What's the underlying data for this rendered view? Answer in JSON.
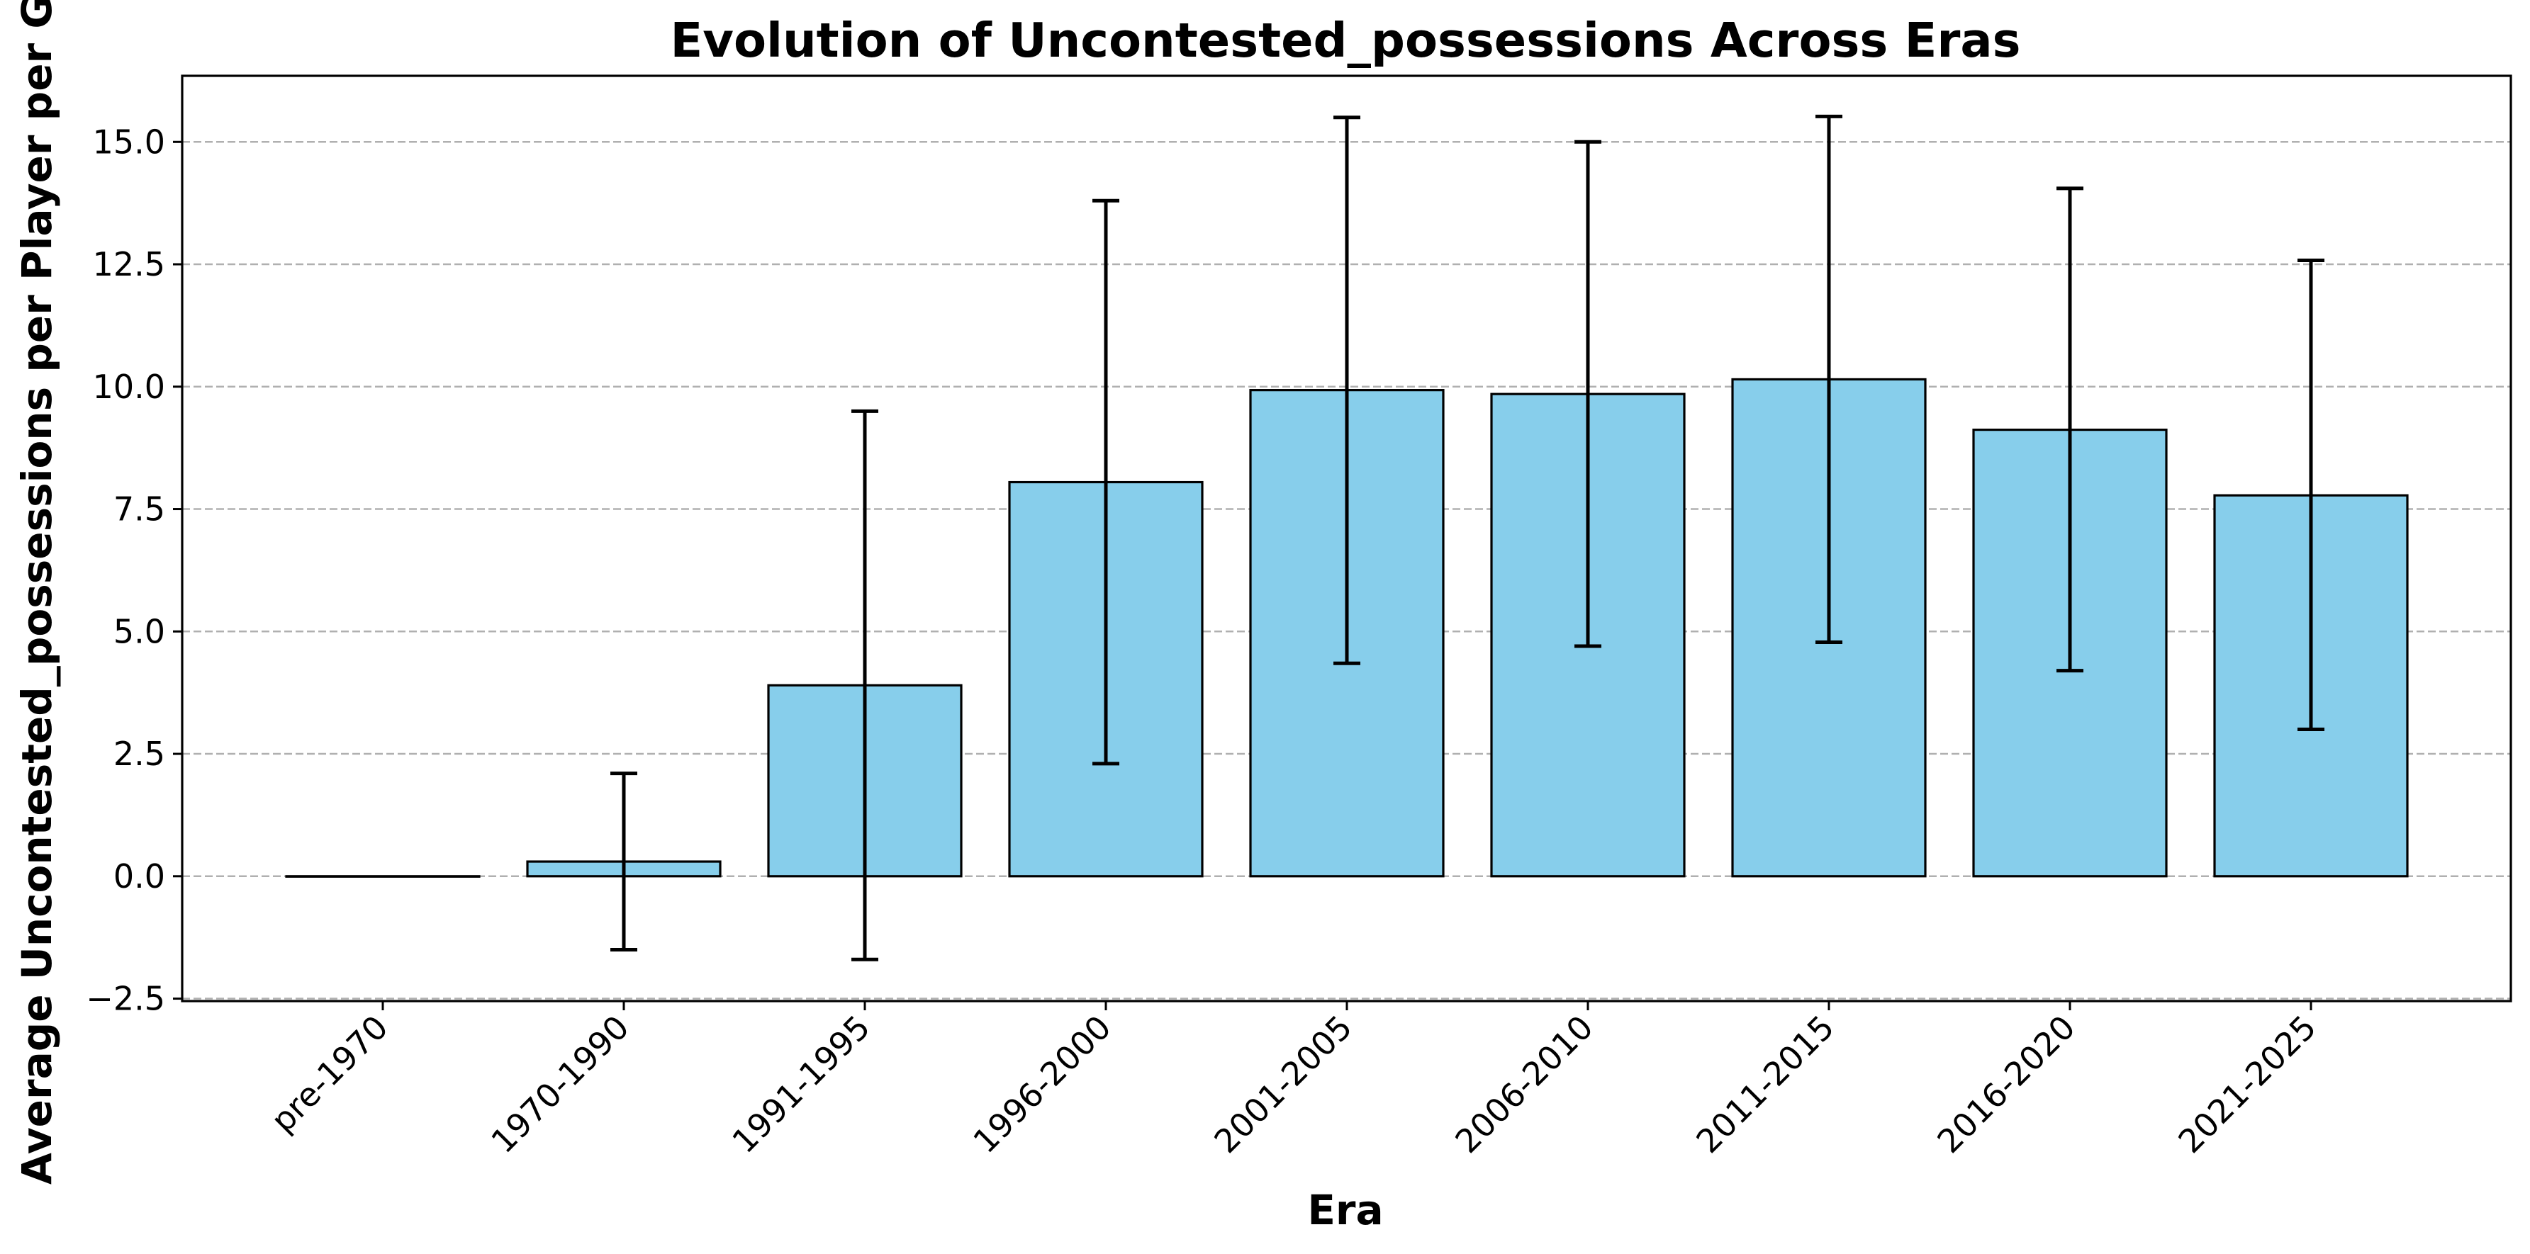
{
  "chart_data": {
    "type": "bar",
    "title": "Evolution of Uncontested_possessions Across Eras",
    "xlabel": "Era",
    "ylabel": "Average Uncontested_possessions per Player per Game",
    "categories": [
      "pre-1970",
      "1970-1990",
      "1991-1995",
      "1996-2000",
      "2001-2005",
      "2006-2010",
      "2011-2015",
      "2016-2020",
      "2021-2025"
    ],
    "values": [
      0.0,
      0.3,
      3.9,
      8.05,
      9.93,
      9.85,
      10.15,
      9.12,
      7.78
    ],
    "error_low": [
      0.0,
      -1.5,
      -1.7,
      2.3,
      4.35,
      4.7,
      4.78,
      4.2,
      3.0
    ],
    "error_high": [
      0.0,
      2.1,
      9.5,
      13.8,
      15.5,
      15.0,
      15.52,
      14.05,
      12.58
    ],
    "ylim": [
      -2.55,
      16.35
    ],
    "yticks": [
      -2.5,
      0.0,
      2.5,
      5.0,
      7.5,
      10.0,
      12.5,
      15.0
    ],
    "ytick_labels": [
      "−2.5",
      "0.0",
      "2.5",
      "5.0",
      "7.5",
      "10.0",
      "12.5",
      "15.0"
    ],
    "grid": "y-dashed",
    "colors": {
      "bar_fill": "#87CEEB",
      "bar_edge": "#000000",
      "error_bar": "#000000",
      "grid": "#b0b0b0"
    }
  }
}
